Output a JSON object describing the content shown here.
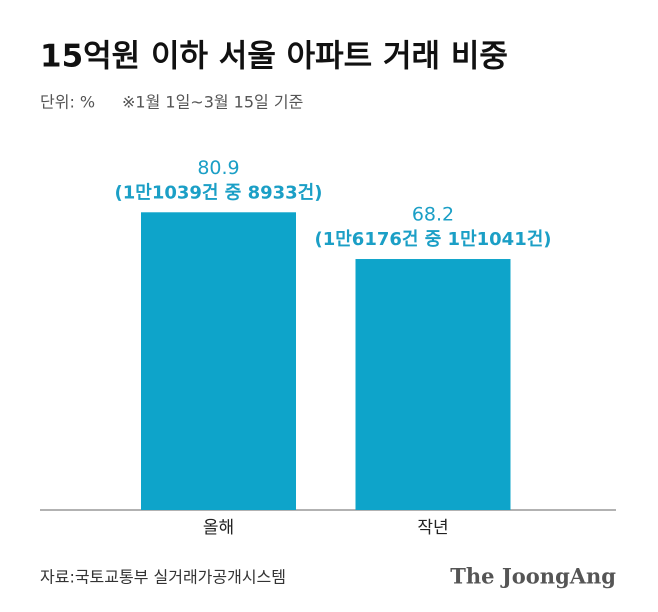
{
  "chart_data": {
    "type": "bar",
    "title": "15억원 이하 서울 아파트 거래 비중",
    "unit": "단위: %",
    "note": "※1월 1일~3월 15일 기준",
    "categories": [
      "올해",
      "작년"
    ],
    "values": [
      80.9,
      68.2
    ],
    "annotations": [
      "(1만1039건 중 8933건)",
      "(1만6176건 중 1만1041건)"
    ],
    "color": "#0ea4ca",
    "label_color": "#1b9fc6",
    "source": "자료:국토교통부 실거래가공개시스템",
    "brand": "The JoongAng"
  }
}
